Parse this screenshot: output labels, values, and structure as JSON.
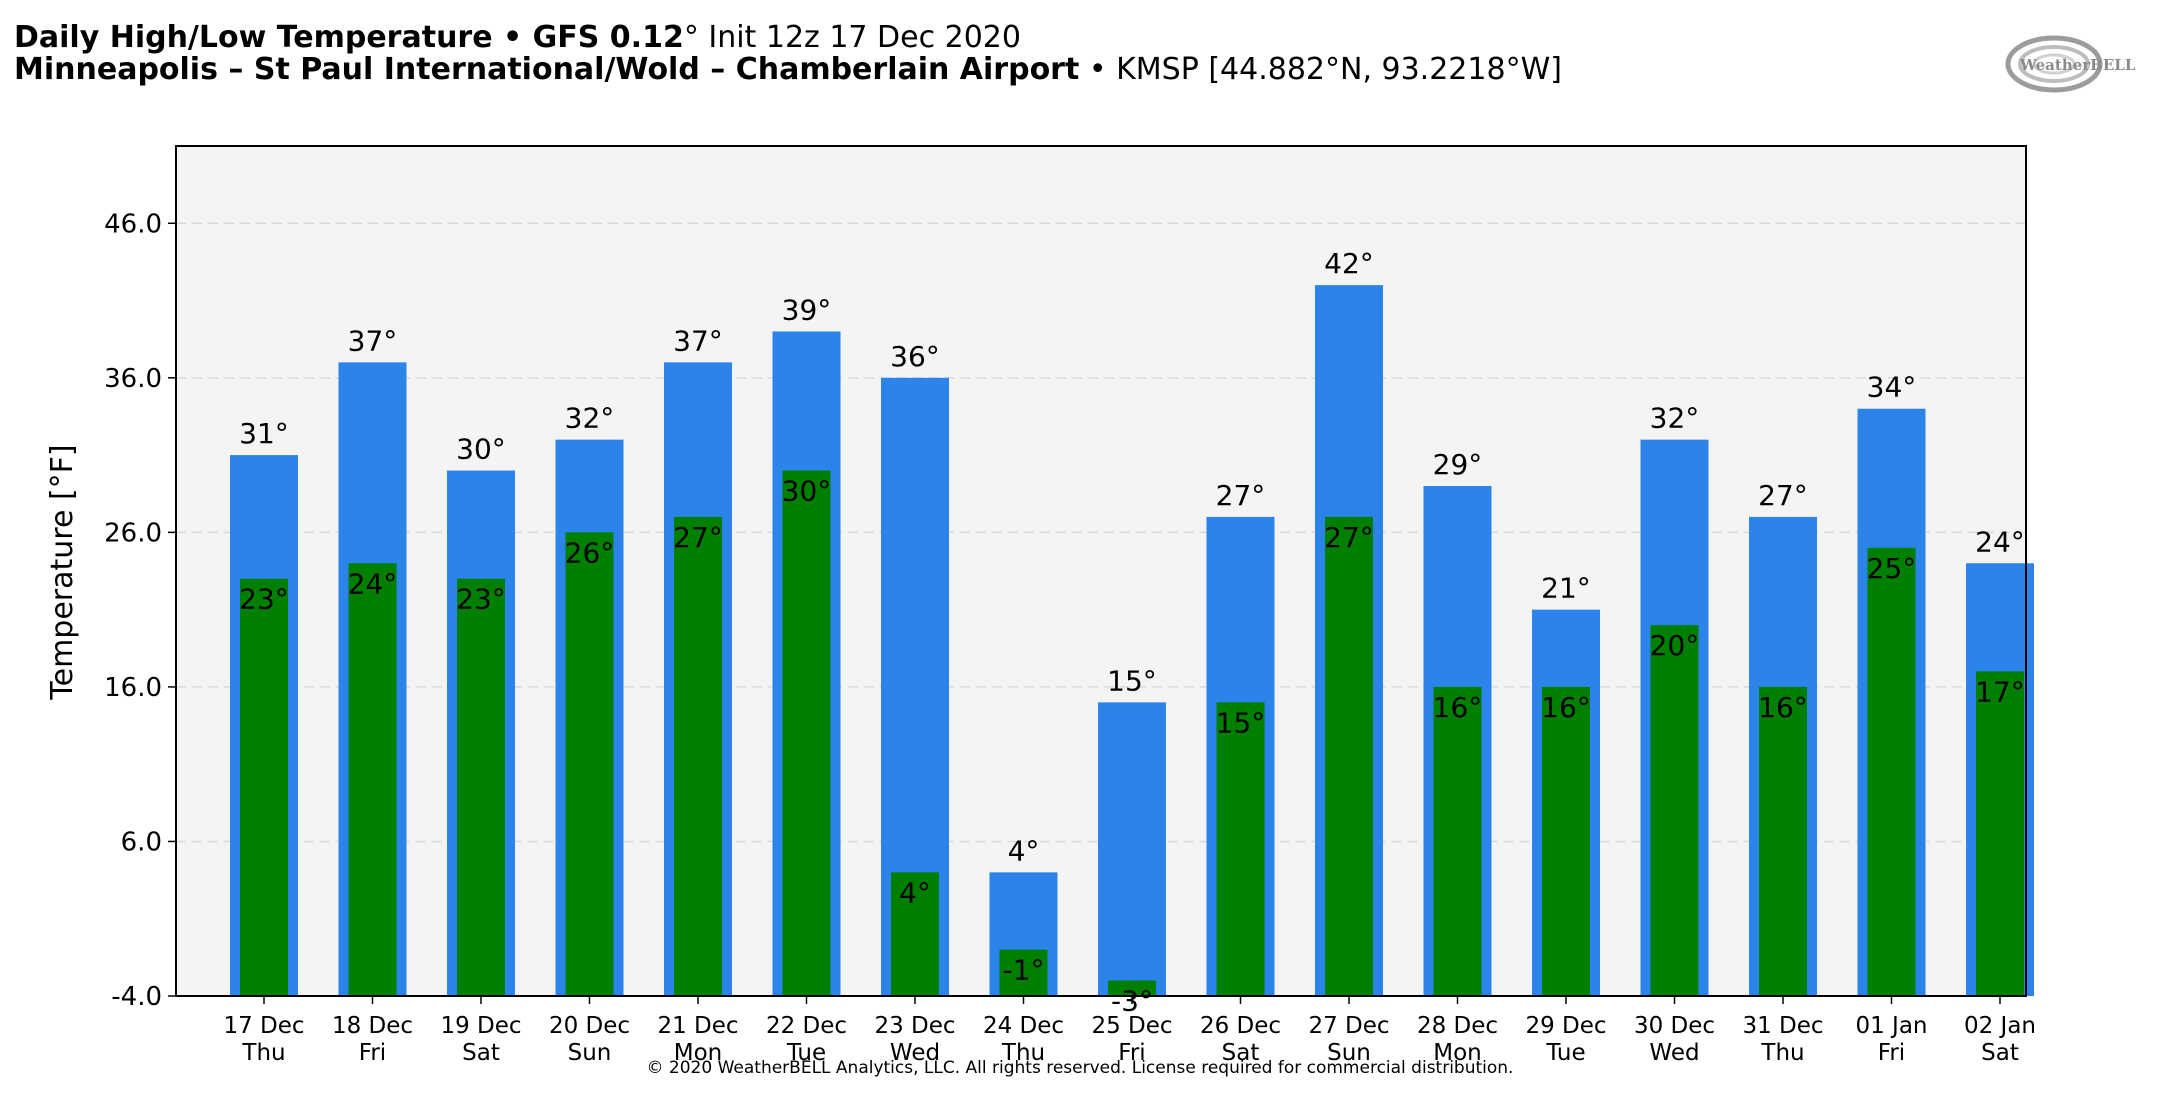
{
  "header": {
    "title_bold": "Daily High/Low Temperature • GFS 0.12",
    "title_deg": "°",
    "title_rest": " Init 12z 17 Dec 2020",
    "station_bold": "Minneapolis – St Paul International/Wold – Chamberlain Airport",
    "station_rest": " • KMSP [44.882°N, 93.2218°W]"
  },
  "logo": {
    "text": "WeatherBELL"
  },
  "footer": {
    "copyright": "© 2020 WeatherBELL Analytics, LLC. All rights reserved. License required for commercial distribution."
  },
  "colors": {
    "high_bar": "#2c84ea",
    "low_bar": "#007f00",
    "plot_bg": "#f4f4f4",
    "grid": "#d9d9d9"
  },
  "chart_data": {
    "type": "bar",
    "title": "Daily High/Low Temperature • GFS 0.12° Init 12z 17 Dec 2020",
    "xlabel": "",
    "ylabel": "Temperature [°F]",
    "ylim": [
      -4,
      51
    ],
    "yticks": [
      "-4.0",
      "6.0",
      "16.0",
      "26.0",
      "36.0",
      "46.0"
    ],
    "ytick_values": [
      -4,
      6,
      16,
      26,
      36,
      46
    ],
    "grid": true,
    "categories": [
      {
        "date": "17 Dec",
        "day": "Thu"
      },
      {
        "date": "18 Dec",
        "day": "Fri"
      },
      {
        "date": "19 Dec",
        "day": "Sat"
      },
      {
        "date": "20 Dec",
        "day": "Sun"
      },
      {
        "date": "21 Dec",
        "day": "Mon"
      },
      {
        "date": "22 Dec",
        "day": "Tue"
      },
      {
        "date": "23 Dec",
        "day": "Wed"
      },
      {
        "date": "24 Dec",
        "day": "Thu"
      },
      {
        "date": "25 Dec",
        "day": "Fri"
      },
      {
        "date": "26 Dec",
        "day": "Sat"
      },
      {
        "date": "27 Dec",
        "day": "Sun"
      },
      {
        "date": "28 Dec",
        "day": "Mon"
      },
      {
        "date": "29 Dec",
        "day": "Tue"
      },
      {
        "date": "30 Dec",
        "day": "Wed"
      },
      {
        "date": "31 Dec",
        "day": "Thu"
      },
      {
        "date": "01 Jan",
        "day": "Fri"
      },
      {
        "date": "02 Jan",
        "day": "Sat"
      }
    ],
    "series": [
      {
        "name": "High",
        "values": [
          31,
          37,
          30,
          32,
          37,
          39,
          36,
          4,
          15,
          27,
          42,
          29,
          21,
          32,
          27,
          34,
          24
        ]
      },
      {
        "name": "Low",
        "values": [
          23,
          24,
          23,
          26,
          27,
          30,
          4,
          -1,
          -3,
          15,
          27,
          16,
          16,
          20,
          16,
          25,
          17
        ]
      }
    ],
    "high_labels": [
      "31°",
      "37°",
      "30°",
      "32°",
      "37°",
      "39°",
      "36°",
      "4°",
      "15°",
      "27°",
      "42°",
      "29°",
      "21°",
      "32°",
      "27°",
      "34°",
      "24°"
    ],
    "low_labels": [
      "23°",
      "24°",
      "23°",
      "26°",
      "27°",
      "30°",
      "4°",
      "-1°",
      "-3°",
      "15°",
      "27°",
      "16°",
      "16°",
      "20°",
      "16°",
      "25°",
      "17°"
    ]
  }
}
